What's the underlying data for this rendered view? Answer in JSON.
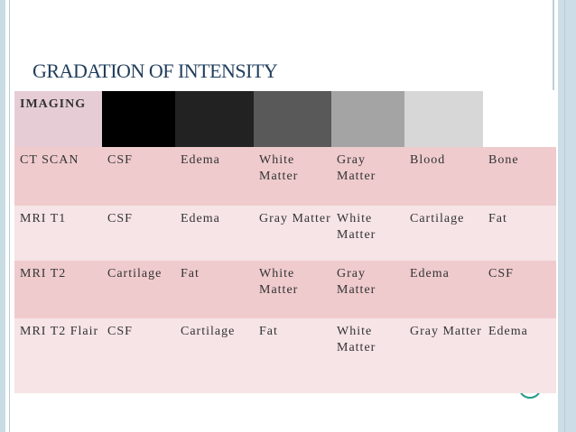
{
  "title": "GRADATION OF INTENSITY",
  "header_label": "IMAGING",
  "swatches": [
    "#000000",
    "#222222",
    "#595959",
    "#a4a4a4",
    "#d7d7d7",
    "#ffffff"
  ],
  "rows": [
    {
      "cells": [
        "CT SCAN",
        "CSF",
        "Edema",
        "White Matter",
        "Gray Matter",
        "Blood",
        "Bone"
      ]
    },
    {
      "cells": [
        "MRI T1",
        "CSF",
        "Edema",
        "Gray Matter",
        "White Matter",
        "Cartilage",
        "Fat"
      ]
    },
    {
      "cells": [
        "MRI T2",
        "Cartilage",
        "Fat",
        "White Matter",
        "Gray Matter",
        "Edema",
        "CSF"
      ]
    },
    {
      "cells": [
        "MRI T2 Flair",
        "CSF",
        "Cartilage",
        "Fat",
        "White Matter",
        "Gray Matter",
        "Edema"
      ]
    }
  ]
}
